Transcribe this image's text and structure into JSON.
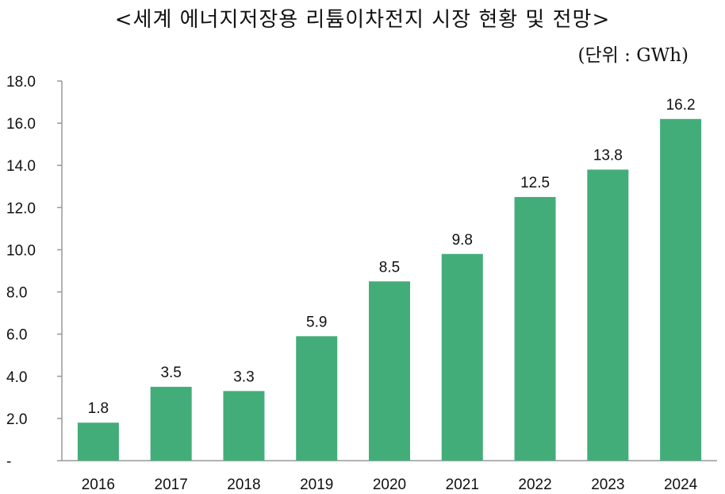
{
  "chart_data": {
    "type": "bar",
    "title": "<세계 에너지저장용 리튬이차전지 시장 현황 및 전망>",
    "unit_label": "(단위 : GWh)",
    "categories": [
      "2016",
      "2017",
      "2018",
      "2019",
      "2020",
      "2021",
      "2022",
      "2023",
      "2024"
    ],
    "values": [
      1.8,
      3.5,
      3.3,
      5.9,
      8.5,
      9.8,
      12.5,
      13.8,
      16.2
    ],
    "data_labels": [
      "1.8",
      "3.5",
      "3.3",
      "5.9",
      "8.5",
      "9.8",
      "12.5",
      "13.8",
      "16.2"
    ],
    "y_ticks": [
      0,
      2,
      4,
      6,
      8,
      10,
      12,
      14,
      16,
      18
    ],
    "y_tick_labels": [
      "-",
      "2.0",
      "4.0",
      "6.0",
      "8.0",
      "10.0",
      "12.0",
      "14.0",
      "16.0",
      "18.0"
    ],
    "ylim": [
      0,
      18
    ],
    "xlabel": "",
    "ylabel": "",
    "grid": false,
    "bar_color": "#43AD7A",
    "axis_color": "#999999"
  }
}
